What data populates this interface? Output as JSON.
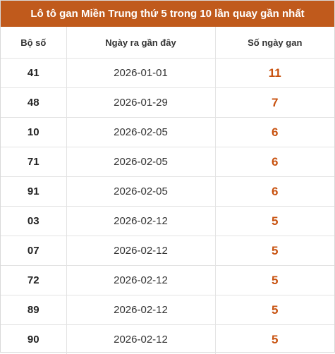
{
  "title": "Lô tô gan Miền Trung thứ 5 trong 10 lần quay gần nhất",
  "header": {
    "col_number": "Bộ số",
    "col_date": "Ngày ra gần đây",
    "col_days": "Số ngày gan"
  },
  "accent_color": "#c05a1c",
  "value_color": "#c8520f",
  "rows": [
    {
      "number": "41",
      "date": "2026-01-01",
      "days": "11"
    },
    {
      "number": "48",
      "date": "2026-01-29",
      "days": "7"
    },
    {
      "number": "10",
      "date": "2026-02-05",
      "days": "6"
    },
    {
      "number": "71",
      "date": "2026-02-05",
      "days": "6"
    },
    {
      "number": "91",
      "date": "2026-02-05",
      "days": "6"
    },
    {
      "number": "03",
      "date": "2026-02-12",
      "days": "5"
    },
    {
      "number": "07",
      "date": "2026-02-12",
      "days": "5"
    },
    {
      "number": "72",
      "date": "2026-02-12",
      "days": "5"
    },
    {
      "number": "89",
      "date": "2026-02-12",
      "days": "5"
    },
    {
      "number": "90",
      "date": "2026-02-12",
      "days": "5"
    }
  ]
}
